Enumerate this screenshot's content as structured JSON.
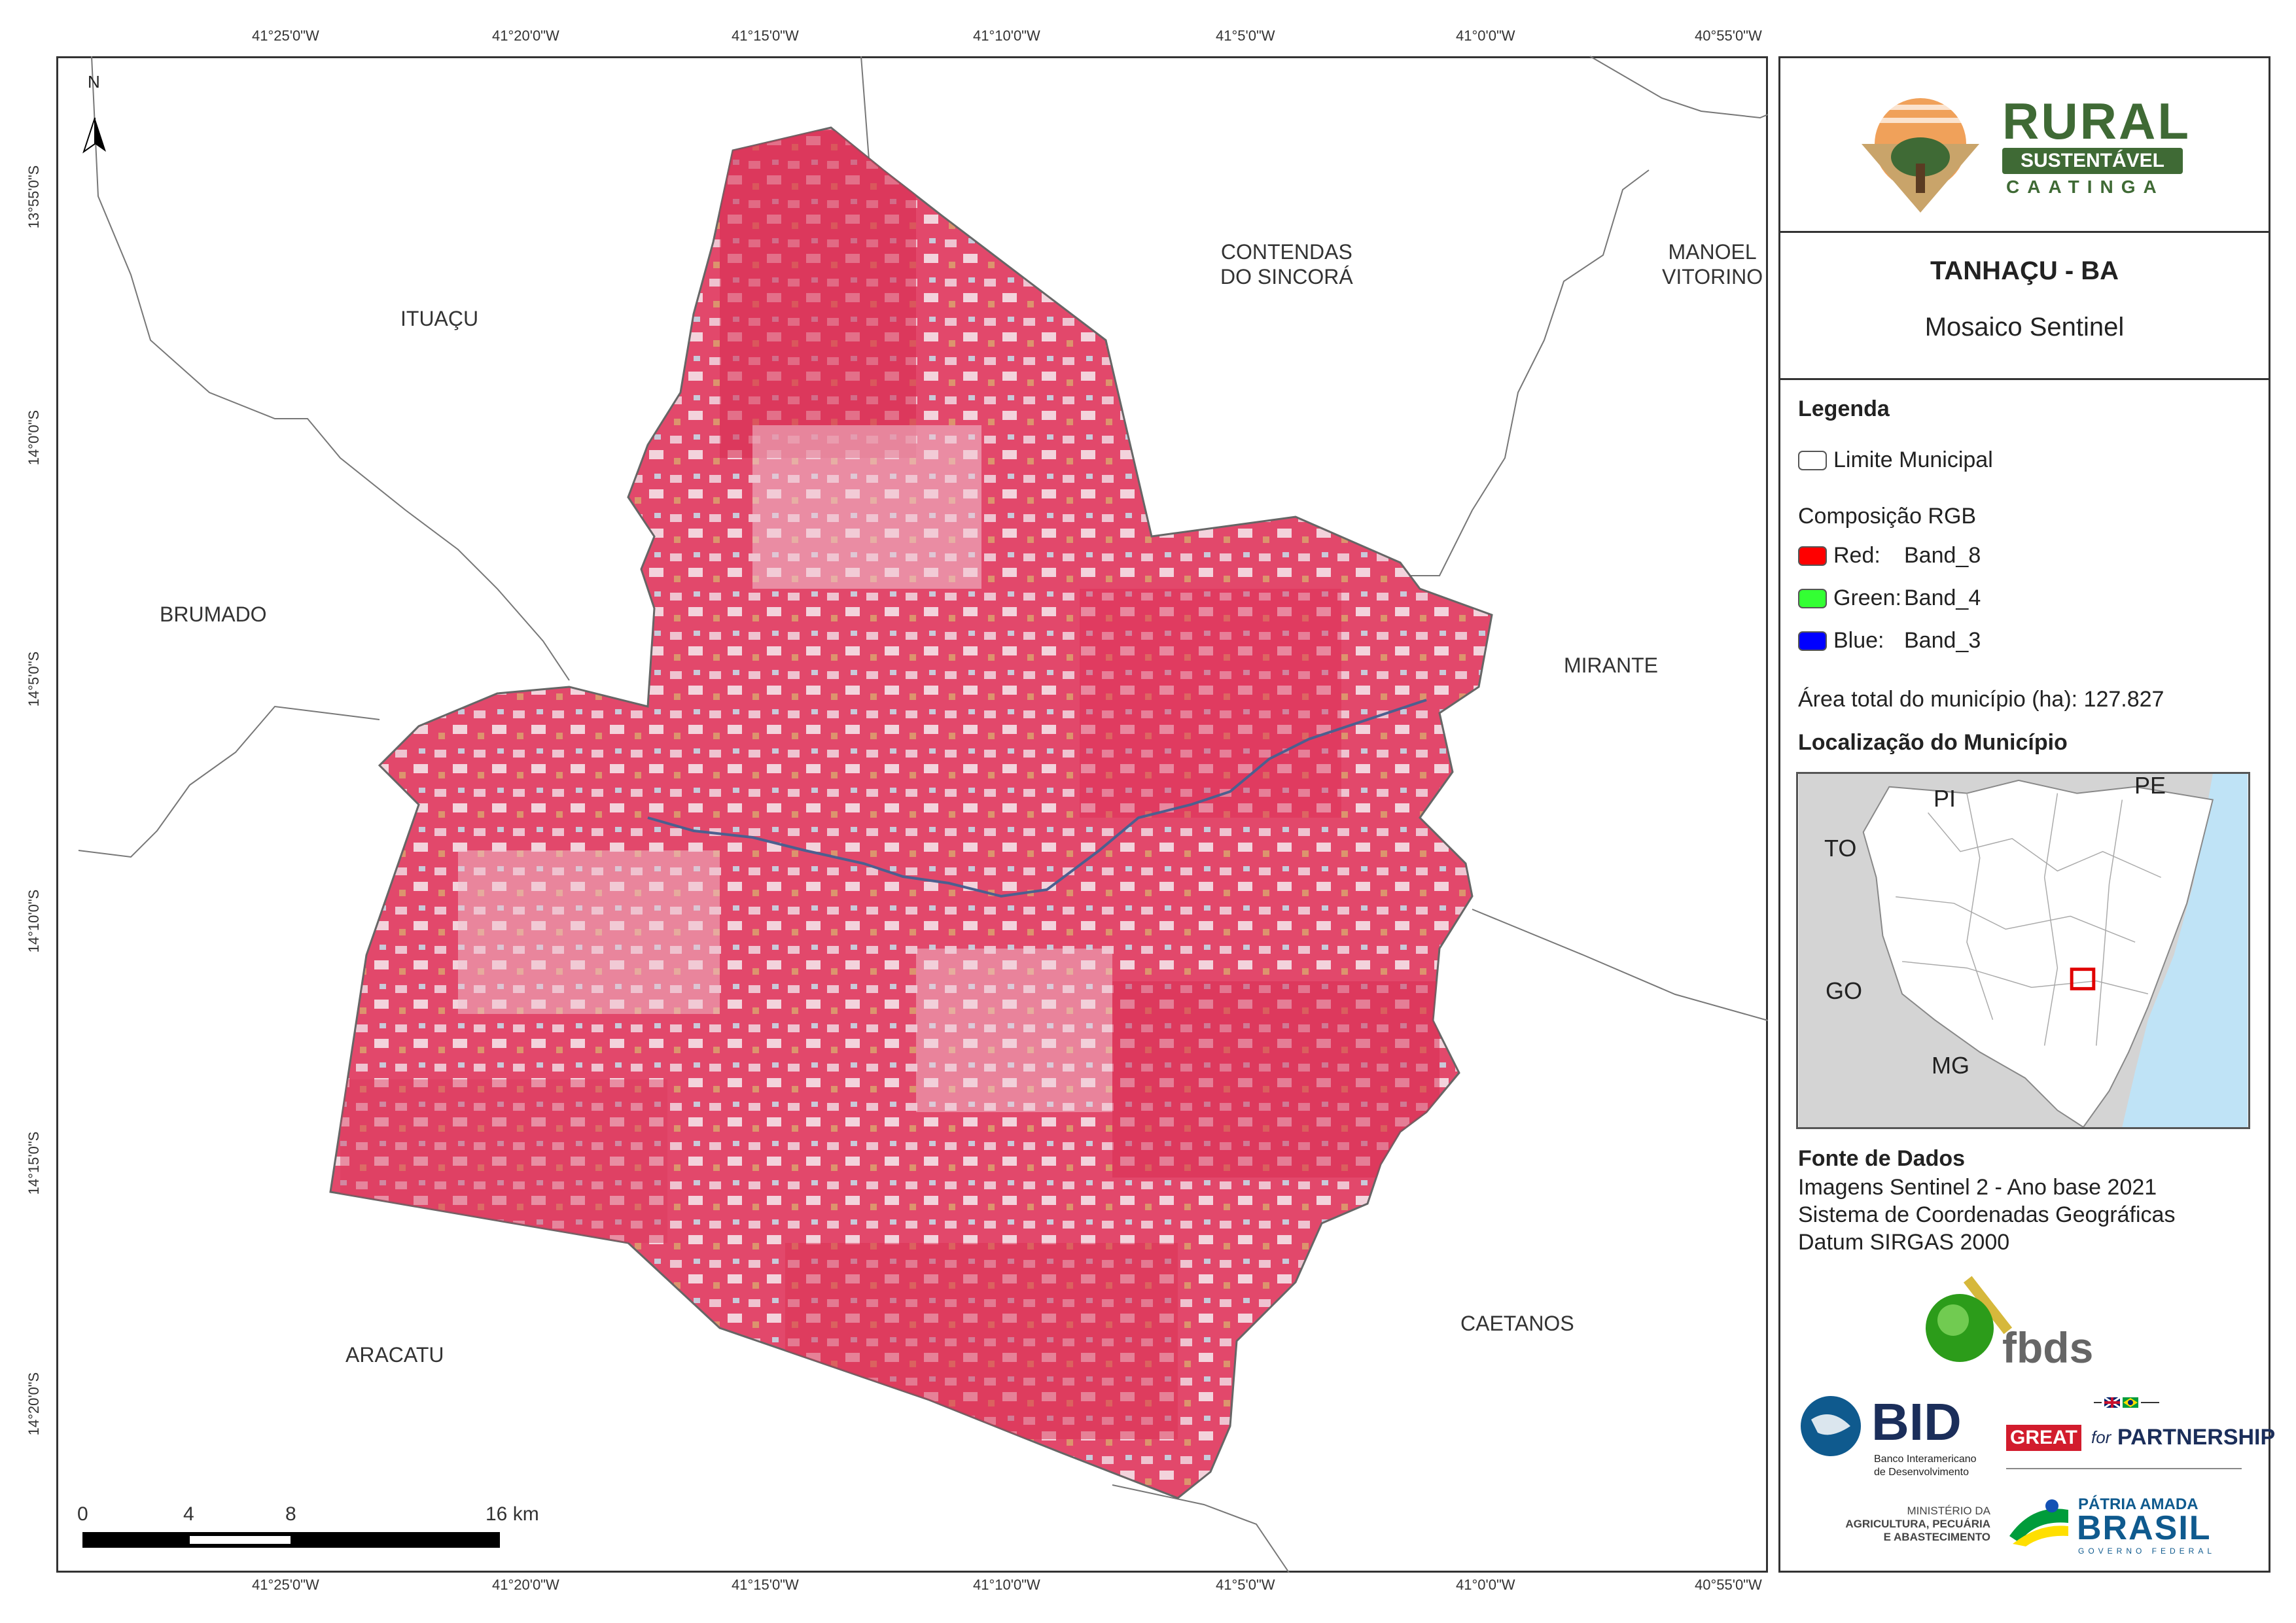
{
  "map": {
    "top_lon_ticks": [
      "41°25'0\"W",
      "41°20'0\"W",
      "41°15'0\"W",
      "41°10'0\"W",
      "41°5'0\"W",
      "41°0'0\"W",
      "40°55'0\"W"
    ],
    "bottom_lon_ticks": [
      "41°25'0\"W",
      "41°20'0\"W",
      "41°15'0\"W",
      "41°10'0\"W",
      "41°5'0\"W",
      "41°0'0\"W",
      "40°55'0\"W"
    ],
    "lat_ticks": [
      "13°55'0\"S",
      "14°0'0\"S",
      "14°5'0\"S",
      "14°10'0\"S",
      "14°15'0\"S",
      "14°20'0\"S"
    ],
    "north_label": "N",
    "towns": {
      "ituacu": "ITUAÇU",
      "contendas_1": "CONTENDAS",
      "contendas_2": "DO SINCORÁ",
      "manoel_1": "MANOEL",
      "manoel_2": "VITORINO",
      "brumado": "BRUMADO",
      "mirante": "MIRANTE",
      "caetanos": "CAETANOS",
      "aracatu": "ARACATU"
    },
    "scale": {
      "labels": [
        "0",
        "4",
        "8",
        "16 km"
      ]
    }
  },
  "logo": {
    "rural": "RURAL",
    "sustentavel": "SUSTENTÁVEL",
    "caatinga": "CAATINGA"
  },
  "title": {
    "municipality": "TANHAÇU - BA",
    "subtitle": "Mosaico Sentinel"
  },
  "legend": {
    "heading": "Legenda",
    "limit": "Limite Municipal",
    "composition": "Composição RGB",
    "bands": [
      {
        "channel": "Red:",
        "band": "Band_8",
        "color": "#ff0000"
      },
      {
        "channel": "Green:",
        "band": "Band_4",
        "color": "#33ff33"
      },
      {
        "channel": "Blue:",
        "band": "Band_3",
        "color": "#0000ff"
      }
    ],
    "area": "Área total do município (ha): 127.827"
  },
  "location": {
    "heading": "Localização do Município",
    "states": {
      "pi": "PI",
      "pe": "PE",
      "to": "TO",
      "go": "GO",
      "mg": "MG"
    }
  },
  "sources": {
    "heading": "Fonte de Dados",
    "lines": [
      "Imagens Sentinel 2 - Ano base 2021",
      "Sistema de Coordenadas Geográficas",
      "Datum SIRGAS 2000"
    ]
  },
  "partners": {
    "fbds": "fbds",
    "bid": "BID",
    "bid_sub_1": "Banco Interamericano",
    "bid_sub_2": "de Desenvolvimento",
    "great": "GREAT",
    "for": "for",
    "partnership": "PARTNERSHIP",
    "ministry_1": "MINISTÉRIO DA",
    "ministry_2": "AGRICULTURA, PECUÁRIA",
    "ministry_3": "E ABASTECIMENTO",
    "patria": "PÁTRIA AMADA",
    "brasil": "BRASIL",
    "governo": "GOVERNO FEDERAL"
  },
  "colors": {
    "municipality_fill": "#e0365a",
    "light_fill": "#e9b8c6",
    "frame": "#333333",
    "ocean": "#bfe3f6",
    "rural_green": "#3f6a35"
  }
}
